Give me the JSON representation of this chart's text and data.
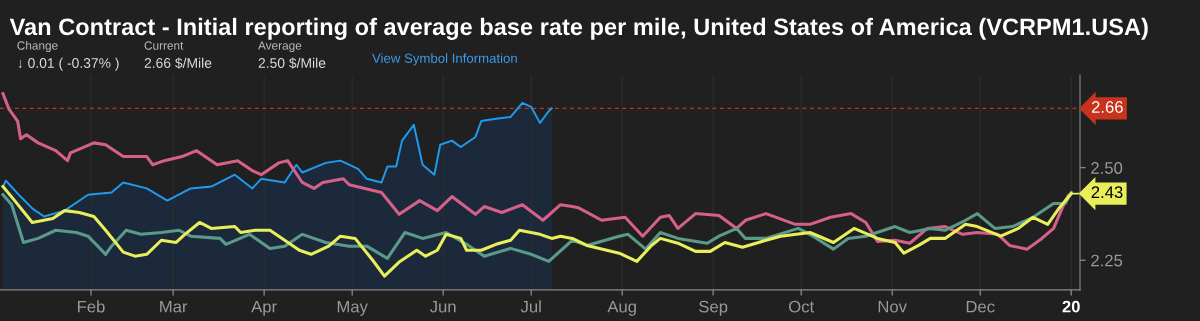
{
  "chart_data": {
    "type": "line",
    "title": "Van Contract - Initial reporting of average base rate per mile, United States of America (VCRPM1.USA)",
    "annotations": [
      "Change",
      "↓ 0.01 ( -0.37% )",
      "Current",
      "2.66 $/Mile",
      "Average",
      "2.50 $/Mile",
      "View Symbol Information",
      {
        "text": "2.43",
        "x": "2020-01-01",
        "y": 2.43
      }
    ],
    "xlim": [
      "2019-01-01",
      "2020-01-04"
    ],
    "xticks": [
      {
        "value": "2019-02-01",
        "label": "Feb"
      },
      {
        "value": "2019-03-01",
        "label": "Mar"
      },
      {
        "value": "2019-04-01",
        "label": "Apr"
      },
      {
        "value": "2019-05-01",
        "label": "May"
      },
      {
        "value": "2019-06-01",
        "label": "Jun"
      },
      {
        "value": "2019-07-01",
        "label": "Jul"
      },
      {
        "value": "2019-08-01",
        "label": "Aug"
      },
      {
        "value": "2019-09-01",
        "label": "Sep"
      },
      {
        "value": "2019-10-01",
        "label": "Oct"
      },
      {
        "value": "2019-11-01",
        "label": "Nov"
      },
      {
        "value": "2019-12-01",
        "label": "Dec"
      },
      {
        "value": "2020-01-01",
        "label": "20"
      }
    ],
    "ylim": [
      2.17,
      2.75
    ],
    "yticks": [
      2.25,
      {
        "value": 2.5,
        "label": "2.50"
      }
    ],
    "grid": "x",
    "legend": false,
    "ref_lines": [
      {
        "axis": "y",
        "value": 2.66,
        "label": "2.66",
        "color": "#c8331e",
        "line_style": "dashed"
      }
    ],
    "series": [
      {
        "type": "area",
        "color": "#1e9bf0",
        "x": [
          "2019-01-02",
          "2019-01-03",
          "2019-01-08",
          "2019-01-12",
          "2019-01-16",
          "2019-01-23",
          "2019-01-31",
          "2019-02-08",
          "2019-02-12",
          "2019-02-20",
          "2019-02-27",
          "2019-03-07",
          "2019-03-14",
          "2019-03-22",
          "2019-03-28",
          "2019-03-31",
          "2019-04-08",
          "2019-04-12",
          "2019-04-14",
          "2019-04-22",
          "2019-04-27",
          "2019-05-03",
          "2019-05-06",
          "2019-05-11",
          "2019-05-13",
          "2019-05-16",
          "2019-05-18",
          "2019-05-22",
          "2019-05-25",
          "2019-05-29",
          "2019-05-31",
          "2019-06-04",
          "2019-06-07",
          "2019-06-12",
          "2019-06-14",
          "2019-06-19",
          "2019-06-24",
          "2019-06-28",
          "2019-07-01",
          "2019-07-04",
          "2019-07-07",
          "2019-07-08"
        ],
        "values": [
          2.449,
          2.465,
          2.422,
          2.39,
          2.368,
          2.384,
          2.427,
          2.433,
          2.46,
          2.444,
          2.411,
          2.444,
          2.449,
          2.481,
          2.444,
          2.47,
          2.46,
          2.508,
          2.487,
          2.513,
          2.519,
          2.497,
          2.47,
          2.46,
          2.503,
          2.503,
          2.573,
          2.616,
          2.508,
          2.481,
          2.562,
          2.573,
          2.556,
          2.583,
          2.626,
          2.632,
          2.637,
          2.675,
          2.664,
          2.621,
          2.653,
          2.66
        ]
      },
      {
        "type": "line",
        "color": "#d6608a",
        "x": [
          "2019-01-02",
          "2019-01-04",
          "2019-01-07",
          "2019-01-08",
          "2019-01-10",
          "2019-01-14",
          "2019-01-20",
          "2019-01-24",
          "2019-01-25",
          "2019-02-02",
          "2019-02-06",
          "2019-02-12",
          "2019-02-20",
          "2019-02-22",
          "2019-02-26",
          "2019-03-04",
          "2019-03-09",
          "2019-03-16",
          "2019-03-23",
          "2019-03-28",
          "2019-03-31",
          "2019-04-06",
          "2019-04-09",
          "2019-04-14",
          "2019-04-18",
          "2019-04-21",
          "2019-04-28",
          "2019-04-30",
          "2019-05-11",
          "2019-05-17",
          "2019-05-24",
          "2019-05-30",
          "2019-06-04",
          "2019-06-12",
          "2019-06-15",
          "2019-06-21",
          "2019-06-28",
          "2019-07-05",
          "2019-07-11",
          "2019-07-15",
          "2019-07-17",
          "2019-07-25",
          "2019-08-02",
          "2019-08-08",
          "2019-08-14",
          "2019-08-17",
          "2019-08-20",
          "2019-08-26",
          "2019-09-03",
          "2019-09-09",
          "2019-09-12",
          "2019-09-19",
          "2019-09-29",
          "2019-10-04",
          "2019-10-11",
          "2019-10-18",
          "2019-10-23",
          "2019-10-27",
          "2019-11-02",
          "2019-11-07",
          "2019-11-13",
          "2019-11-19",
          "2019-11-25",
          "2019-11-30",
          "2019-12-07",
          "2019-12-11",
          "2019-12-17",
          "2019-12-22",
          "2019-12-26",
          "2019-12-29",
          "2019-12-31",
          "2020-01-01"
        ],
        "values": [
          2.7,
          2.659,
          2.626,
          2.578,
          2.589,
          2.567,
          2.546,
          2.519,
          2.54,
          2.567,
          2.562,
          2.53,
          2.53,
          2.508,
          2.519,
          2.53,
          2.546,
          2.508,
          2.519,
          2.492,
          2.481,
          2.513,
          2.519,
          2.46,
          2.444,
          2.46,
          2.47,
          2.454,
          2.433,
          2.374,
          2.411,
          2.384,
          2.422,
          2.374,
          2.395,
          2.379,
          2.4,
          2.358,
          2.4,
          2.395,
          2.392,
          2.358,
          2.366,
          2.315,
          2.366,
          2.371,
          2.336,
          2.376,
          2.371,
          2.336,
          2.358,
          2.376,
          2.347,
          2.347,
          2.366,
          2.376,
          2.352,
          2.301,
          2.304,
          2.296,
          2.336,
          2.341,
          2.32,
          2.325,
          2.32,
          2.29,
          2.28,
          2.309,
          2.336,
          2.392,
          2.425,
          2.43
        ]
      },
      {
        "type": "line",
        "color": "#5b9a8b",
        "x": [
          "2019-01-02",
          "2019-01-05",
          "2019-01-09",
          "2019-01-14",
          "2019-01-20",
          "2019-01-27",
          "2019-01-31",
          "2019-02-06",
          "2019-02-08",
          "2019-02-13",
          "2019-02-18",
          "2019-02-25",
          "2019-03-03",
          "2019-03-07",
          "2019-03-17",
          "2019-03-19",
          "2019-03-27",
          "2019-04-03",
          "2019-04-08",
          "2019-04-14",
          "2019-04-22",
          "2019-04-30",
          "2019-05-06",
          "2019-05-13",
          "2019-05-19",
          "2019-05-25",
          "2019-06-02",
          "2019-06-09",
          "2019-06-15",
          "2019-06-24",
          "2019-07-01",
          "2019-07-07",
          "2019-07-15",
          "2019-07-20",
          "2019-07-31",
          "2019-08-03",
          "2019-08-09",
          "2019-08-14",
          "2019-08-20",
          "2019-08-30",
          "2019-09-03",
          "2019-09-09",
          "2019-09-12",
          "2019-09-19",
          "2019-09-30",
          "2019-10-05",
          "2019-10-12",
          "2019-10-17",
          "2019-10-23",
          "2019-11-02",
          "2019-11-07",
          "2019-11-14",
          "2019-11-19",
          "2019-11-26",
          "2019-11-30",
          "2019-12-06",
          "2019-12-12",
          "2019-12-19",
          "2019-12-26",
          "2019-12-30",
          "2020-01-01"
        ],
        "values": [
          2.427,
          2.4,
          2.298,
          2.309,
          2.331,
          2.325,
          2.315,
          2.266,
          2.288,
          2.331,
          2.32,
          2.325,
          2.331,
          2.315,
          2.309,
          2.293,
          2.32,
          2.282,
          2.288,
          2.32,
          2.298,
          2.288,
          2.288,
          2.255,
          2.325,
          2.309,
          2.325,
          2.293,
          2.261,
          2.282,
          2.266,
          2.247,
          2.304,
          2.29,
          2.315,
          2.32,
          2.28,
          2.325,
          2.309,
          2.296,
          2.315,
          2.336,
          2.309,
          2.309,
          2.336,
          2.315,
          2.28,
          2.309,
          2.315,
          2.341,
          2.325,
          2.336,
          2.331,
          2.358,
          2.376,
          2.336,
          2.341,
          2.366,
          2.403,
          2.403,
          2.433
        ]
      },
      {
        "type": "line",
        "color": "#e8ef5a",
        "x": [
          "2019-01-02",
          "2019-01-06",
          "2019-01-12",
          "2019-01-19",
          "2019-01-23",
          "2019-01-28",
          "2019-02-02",
          "2019-02-06",
          "2019-02-12",
          "2019-02-16",
          "2019-02-20",
          "2019-02-25",
          "2019-03-02",
          "2019-03-05",
          "2019-03-10",
          "2019-03-14",
          "2019-03-22",
          "2019-03-24",
          "2019-03-29",
          "2019-04-03",
          "2019-04-08",
          "2019-04-13",
          "2019-04-17",
          "2019-04-23",
          "2019-04-27",
          "2019-05-02",
          "2019-05-08",
          "2019-05-12",
          "2019-05-17",
          "2019-05-23",
          "2019-05-26",
          "2019-05-30",
          "2019-06-02",
          "2019-06-07",
          "2019-06-09",
          "2019-06-14",
          "2019-06-19",
          "2019-06-24",
          "2019-06-27",
          "2019-07-04",
          "2019-07-08",
          "2019-07-11",
          "2019-07-15",
          "2019-07-20",
          "2019-07-31",
          "2019-08-06",
          "2019-08-11",
          "2019-08-14",
          "2019-08-20",
          "2019-08-26",
          "2019-08-31",
          "2019-09-05",
          "2019-09-11",
          "2019-09-19",
          "2019-09-24",
          "2019-10-04",
          "2019-10-12",
          "2019-10-19",
          "2019-10-27",
          "2019-11-02",
          "2019-11-05",
          "2019-11-10",
          "2019-11-14",
          "2019-11-19",
          "2019-11-26",
          "2019-11-30",
          "2019-12-08",
          "2019-12-14",
          "2019-12-19",
          "2019-12-24",
          "2019-12-28",
          "2020-01-01"
        ],
        "values": [
          2.449,
          2.411,
          2.352,
          2.363,
          2.384,
          2.379,
          2.368,
          2.331,
          2.272,
          2.261,
          2.266,
          2.304,
          2.298,
          2.32,
          2.352,
          2.336,
          2.341,
          2.325,
          2.331,
          2.331,
          2.304,
          2.277,
          2.266,
          2.288,
          2.315,
          2.309,
          2.25,
          2.207,
          2.245,
          2.277,
          2.261,
          2.277,
          2.32,
          2.309,
          2.277,
          2.277,
          2.293,
          2.304,
          2.331,
          2.32,
          2.309,
          2.315,
          2.309,
          2.29,
          2.269,
          2.247,
          2.29,
          2.309,
          2.296,
          2.274,
          2.274,
          2.298,
          2.285,
          2.304,
          2.315,
          2.325,
          2.298,
          2.336,
          2.309,
          2.298,
          2.269,
          2.29,
          2.309,
          2.309,
          2.347,
          2.341,
          2.315,
          2.336,
          2.366,
          2.347,
          2.392,
          2.43
        ]
      }
    ]
  }
}
